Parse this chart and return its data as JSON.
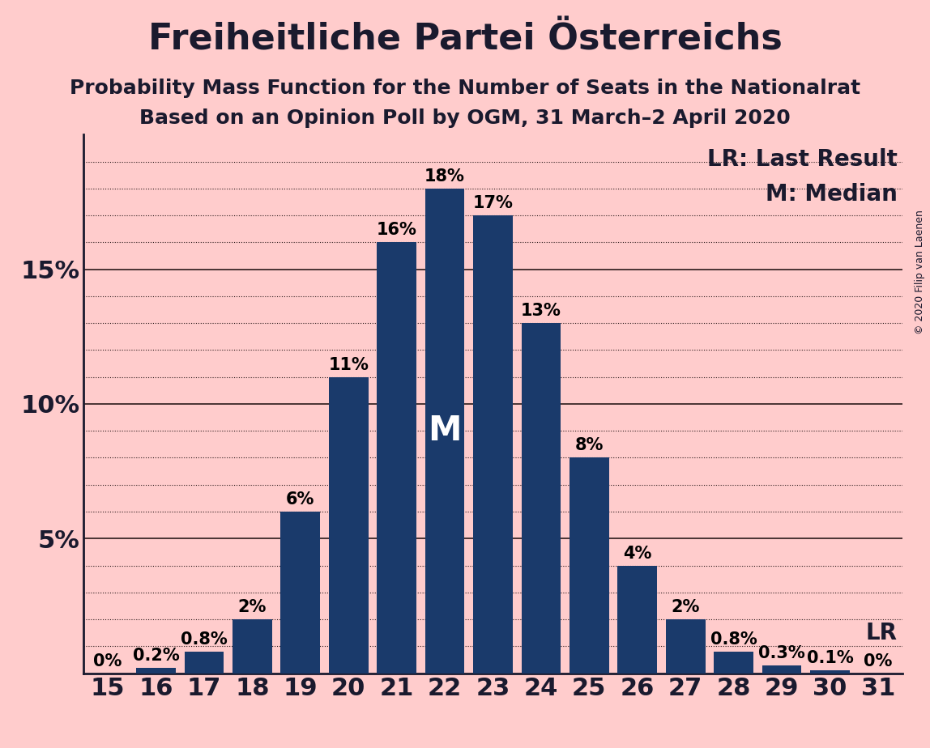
{
  "title": "Freiheitliche Partei Österreichs",
  "subtitle1": "Probability Mass Function for the Number of Seats in the Nationalrat",
  "subtitle2": "Based on an Opinion Poll by OGM, 31 March–2 April 2020",
  "copyright": "© 2020 Filip van Laenen",
  "seats": [
    15,
    16,
    17,
    18,
    19,
    20,
    21,
    22,
    23,
    24,
    25,
    26,
    27,
    28,
    29,
    30,
    31
  ],
  "probabilities": [
    0.0,
    0.2,
    0.8,
    2.0,
    6.0,
    11.0,
    16.0,
    18.0,
    17.0,
    13.0,
    8.0,
    4.0,
    2.0,
    0.8,
    0.3,
    0.1,
    0.0
  ],
  "bar_color": "#1a3a6b",
  "background_color": "#ffcccc",
  "median_seat": 22,
  "last_result_seat": 31,
  "legend_lr": "LR: Last Result",
  "legend_m": "M: Median",
  "median_label": "M",
  "lr_label": "LR",
  "ylim": [
    0,
    20
  ],
  "solid_gridlines": [
    5,
    10,
    15
  ],
  "dotted_gridlines": [
    1,
    2,
    3,
    4,
    6,
    7,
    8,
    9,
    11,
    12,
    13,
    14,
    16,
    17,
    18,
    19
  ],
  "ytick_positions": [
    5,
    10,
    15
  ],
  "ytick_labels": [
    "5%",
    "10%",
    "15%"
  ],
  "title_fontsize": 32,
  "subtitle_fontsize": 18,
  "tick_fontsize": 22,
  "bar_label_fontsize": 15,
  "legend_fontsize": 20,
  "median_fontsize": 30,
  "copyright_fontsize": 9
}
